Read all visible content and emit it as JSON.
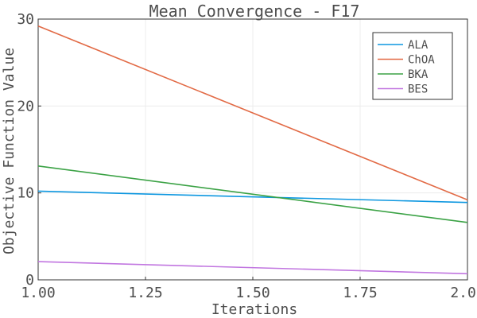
{
  "chart_data": {
    "type": "line",
    "title": "Mean Convergence - F17",
    "xlabel": "Iterations",
    "ylabel": "Objective Function Value",
    "xlim": [
      1.0,
      2.0
    ],
    "ylim": [
      0,
      30
    ],
    "xticks": [
      "1.00",
      "1.25",
      "1.50",
      "1.75",
      "2.00"
    ],
    "xtick_values": [
      1.0,
      1.25,
      1.5,
      1.75,
      2.0
    ],
    "yticks": [
      "0",
      "10",
      "20",
      "30"
    ],
    "ytick_values": [
      0,
      10,
      20,
      30
    ],
    "grid": true,
    "legend_position": "top-right",
    "x": [
      1,
      2
    ],
    "series": [
      {
        "name": "ALA",
        "color": "#0d97e0",
        "values": [
          10.2,
          8.9
        ]
      },
      {
        "name": "ChOA",
        "color": "#e26a45",
        "values": [
          29.2,
          9.2
        ]
      },
      {
        "name": "BKA",
        "color": "#3ba245",
        "values": [
          13.1,
          6.6
        ]
      },
      {
        "name": "BES",
        "color": "#c176e0",
        "values": [
          2.1,
          0.7
        ]
      }
    ]
  }
}
